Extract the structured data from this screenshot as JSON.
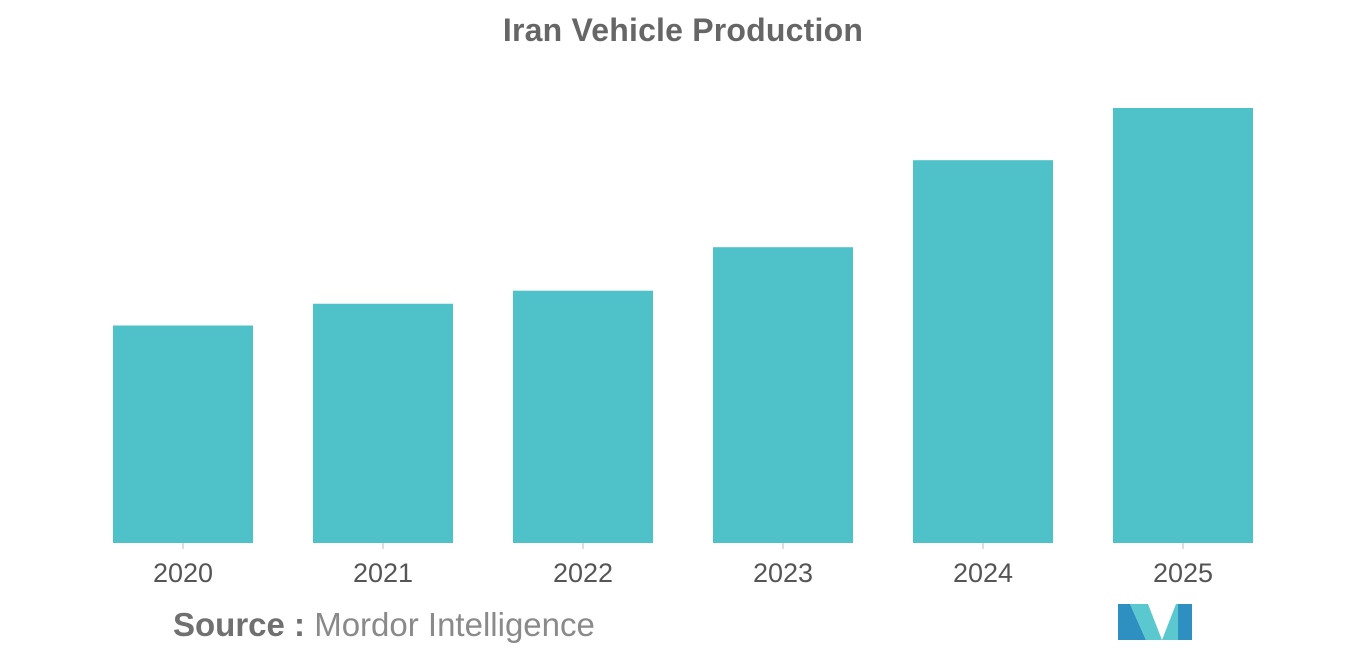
{
  "chart_data": {
    "type": "bar",
    "title": "Iran Vehicle Production",
    "categories": [
      "2020",
      "2021",
      "2022",
      "2023",
      "2024",
      "2025"
    ],
    "values": [
      50,
      55,
      58,
      68,
      88,
      100
    ],
    "ylim": [
      0,
      100
    ],
    "xlabel": "",
    "ylabel": "",
    "grid": false,
    "legend": "none",
    "bar_color": "#4FC1C9"
  },
  "source": {
    "label": "Source :",
    "value": "Mordor Intelligence"
  },
  "logo": {
    "icon": "mordor-intelligence-logo-icon",
    "colors": [
      "#2E8FC1",
      "#5BC8D0"
    ]
  }
}
